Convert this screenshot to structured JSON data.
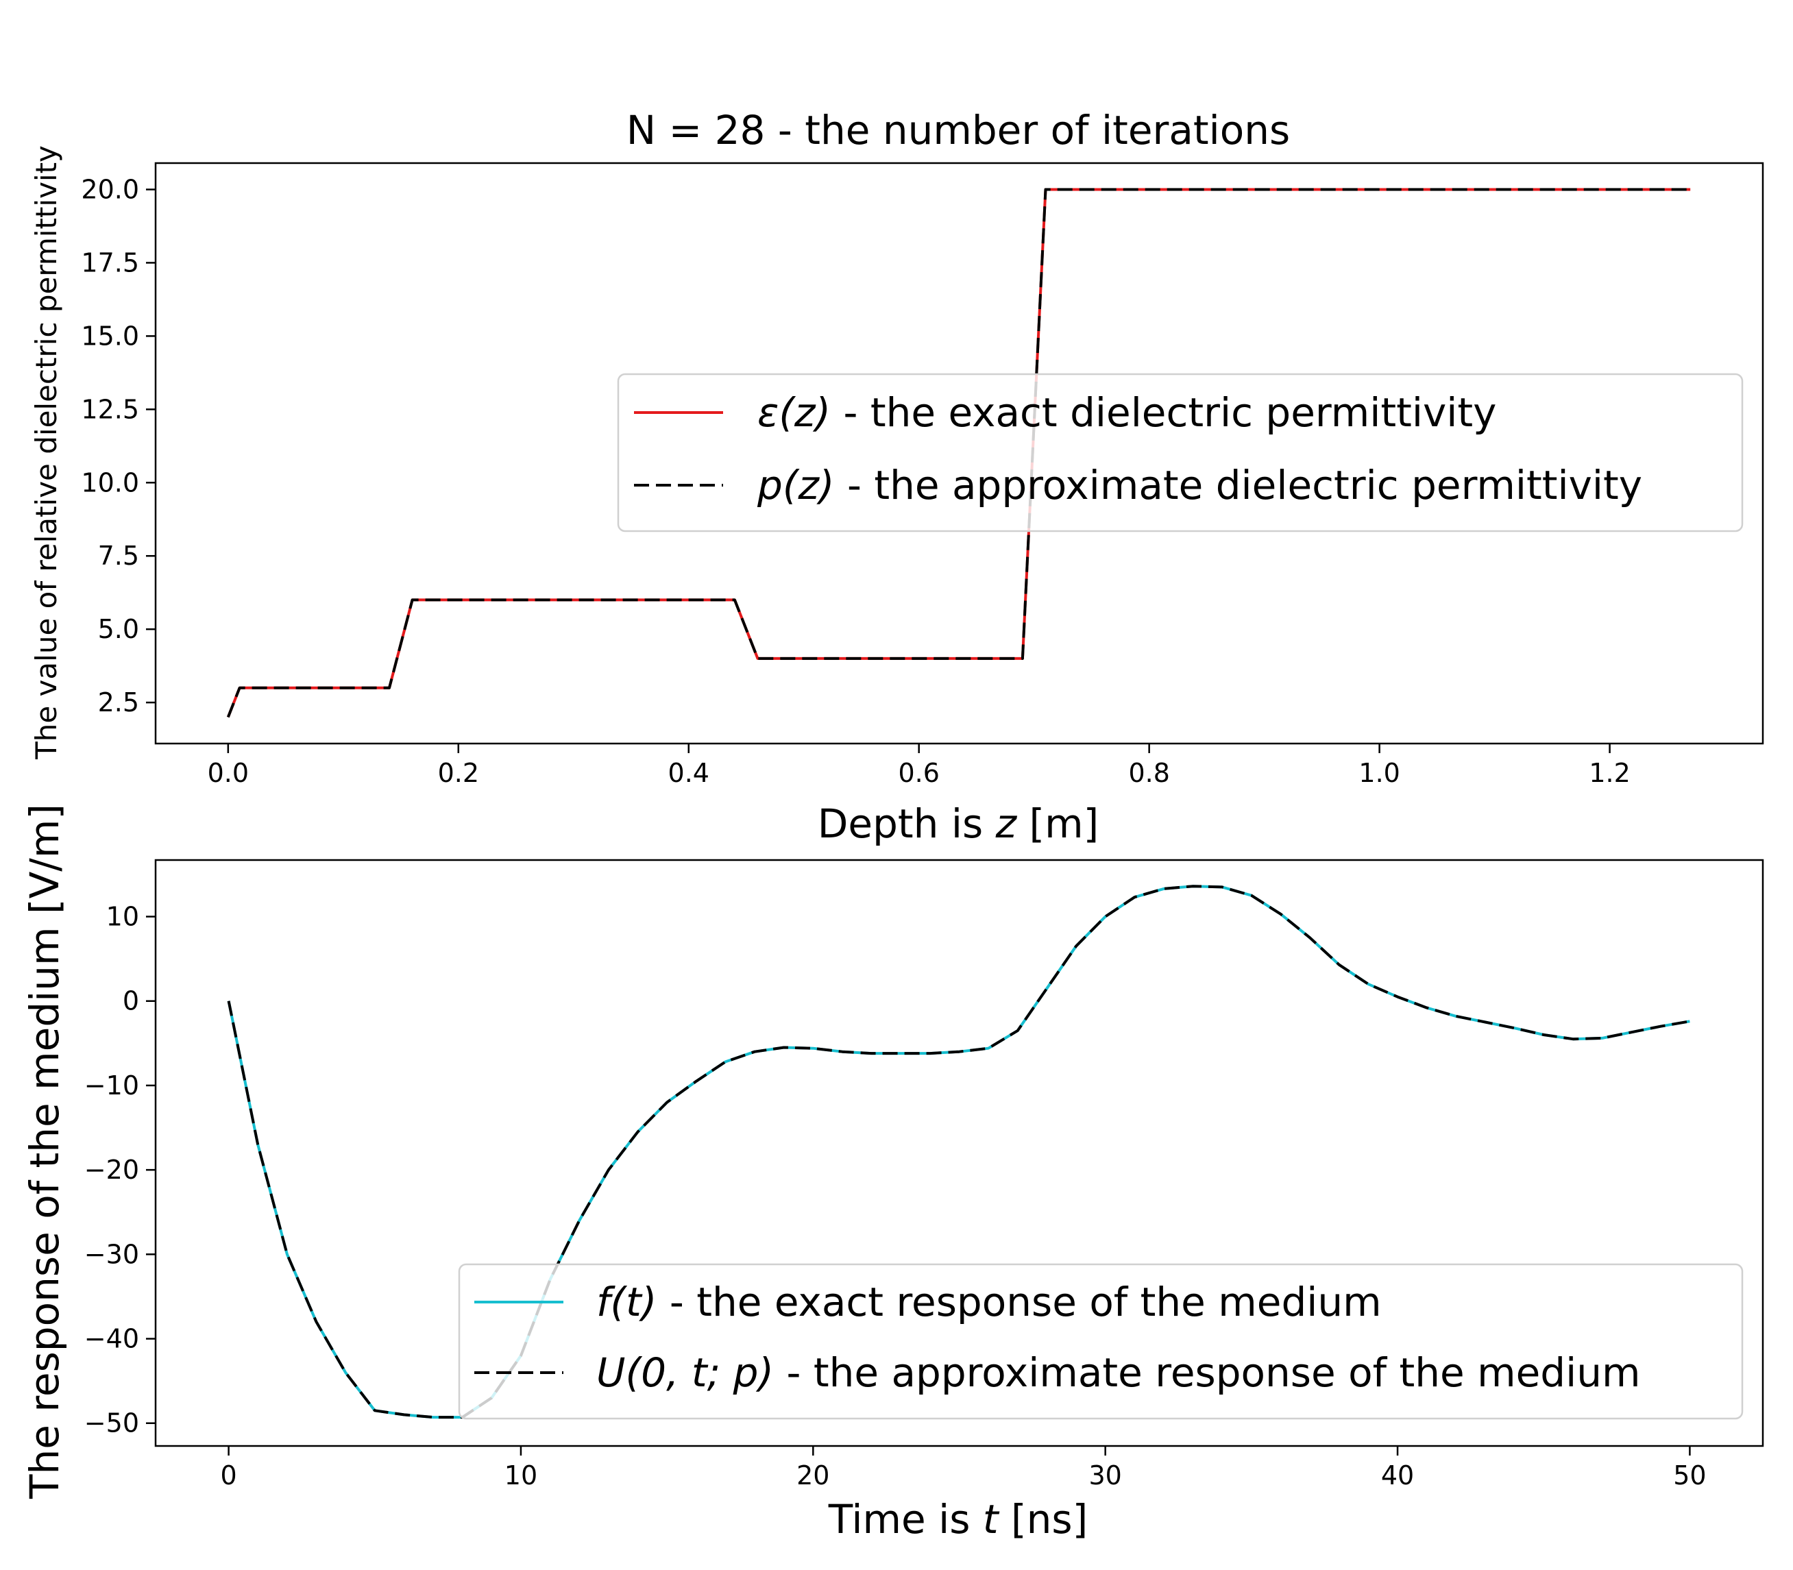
{
  "chart_data": [
    {
      "type": "line",
      "title": "N = 28 - the number of iterations",
      "xlabel_prefix": "Depth is ",
      "xlabel_var": "z",
      "xlabel_suffix": " [m]",
      "ylabel": "The value of relative dielectric permittivity",
      "xlim": [
        -0.063,
        1.333
      ],
      "ylim": [
        1.1,
        20.9
      ],
      "xticks": [
        0.0,
        0.2,
        0.4,
        0.6,
        0.8,
        1.0,
        1.2
      ],
      "xtick_labels": [
        "0.0",
        "0.2",
        "0.4",
        "0.6",
        "0.8",
        "1.0",
        "1.2"
      ],
      "yticks": [
        2.5,
        5.0,
        7.5,
        10.0,
        12.5,
        15.0,
        17.5,
        20.0
      ],
      "ytick_labels": [
        "2.5",
        "5.0",
        "7.5",
        "10.0",
        "12.5",
        "15.0",
        "17.5",
        "20.0"
      ],
      "legend_position": "center-right",
      "series": [
        {
          "name": "exact",
          "legend_sym": "ε(z)",
          "legend_rest": " - the exact dielectric permittivity",
          "color": "#e41a1c",
          "style": "solid",
          "x": [
            0.0,
            0.01,
            0.14,
            0.16,
            0.44,
            0.46,
            0.69,
            0.71,
            1.27
          ],
          "y": [
            2.0,
            3.0,
            3.0,
            6.0,
            6.0,
            4.0,
            4.0,
            20.0,
            20.0
          ]
        },
        {
          "name": "approximate",
          "legend_sym": "p(z)",
          "legend_rest": " - the approximate dielectric permittivity",
          "color": "#000000",
          "style": "dashed",
          "x": [
            0.0,
            0.01,
            0.14,
            0.16,
            0.44,
            0.46,
            0.69,
            0.71,
            1.27
          ],
          "y": [
            2.0,
            3.0,
            3.0,
            6.0,
            6.0,
            4.0,
            4.0,
            20.0,
            20.0
          ]
        }
      ]
    },
    {
      "type": "line",
      "title": "",
      "xlabel_prefix": "Time is ",
      "xlabel_var": "t",
      "xlabel_suffix": " [ns]",
      "ylabel": "The response of the medium [V/m]",
      "xlim": [
        -2.5,
        52.5
      ],
      "ylim": [
        -52.7,
        16.7
      ],
      "xticks": [
        0,
        10,
        20,
        30,
        40,
        50
      ],
      "xtick_labels": [
        "0",
        "10",
        "20",
        "30",
        "40",
        "50"
      ],
      "yticks": [
        -50,
        -40,
        -30,
        -20,
        -10,
        0,
        10
      ],
      "ytick_labels": [
        "−50",
        "−40",
        "−30",
        "−20",
        "−10",
        "0",
        "10"
      ],
      "legend_position": "lower-right",
      "series": [
        {
          "name": "exact",
          "legend_sym": "f(t)",
          "legend_rest": " - the exact response of the medium",
          "color": "#17becf",
          "style": "solid",
          "x": [
            0,
            1,
            2,
            3,
            4,
            5,
            6,
            7,
            8,
            9,
            10,
            11,
            12,
            13,
            14,
            15,
            16,
            17,
            18,
            19,
            20,
            21,
            22,
            23,
            24,
            25,
            26,
            27,
            28,
            29,
            30,
            31,
            32,
            33,
            34,
            35,
            36,
            37,
            38,
            39,
            40,
            41,
            42,
            43,
            44,
            45,
            46,
            47,
            48,
            49,
            50
          ],
          "y": [
            0,
            -17,
            -30,
            -38,
            -44,
            -48.5,
            -49,
            -49.3,
            -49.3,
            -47,
            -42,
            -33,
            -26,
            -20,
            -15.5,
            -12,
            -9.5,
            -7.2,
            -6,
            -5.5,
            -5.6,
            -6,
            -6.2,
            -6.2,
            -6.2,
            -6,
            -5.6,
            -3.5,
            1.5,
            6.5,
            10,
            12.3,
            13.3,
            13.6,
            13.5,
            12.5,
            10.3,
            7.5,
            4.3,
            2,
            0.5,
            -0.8,
            -1.8,
            -2.5,
            -3.2,
            -4,
            -4.5,
            -4.4,
            -3.7,
            -3,
            -2.4
          ]
        },
        {
          "name": "approximate",
          "legend_sym": "U(0, t; p)",
          "legend_rest": " - the approximate response of the medium",
          "color": "#000000",
          "style": "dashed",
          "x": [
            0,
            1,
            2,
            3,
            4,
            5,
            6,
            7,
            8,
            9,
            10,
            11,
            12,
            13,
            14,
            15,
            16,
            17,
            18,
            19,
            20,
            21,
            22,
            23,
            24,
            25,
            26,
            27,
            28,
            29,
            30,
            31,
            32,
            33,
            34,
            35,
            36,
            37,
            38,
            39,
            40,
            41,
            42,
            43,
            44,
            45,
            46,
            47,
            48,
            49,
            50
          ],
          "y": [
            0,
            -17,
            -30,
            -38,
            -44,
            -48.5,
            -49,
            -49.3,
            -49.3,
            -47,
            -42,
            -33,
            -26,
            -20,
            -15.5,
            -12,
            -9.5,
            -7.2,
            -6,
            -5.5,
            -5.6,
            -6,
            -6.2,
            -6.2,
            -6.2,
            -6,
            -5.6,
            -3.5,
            1.5,
            6.5,
            10,
            12.3,
            13.3,
            13.6,
            13.5,
            12.5,
            10.3,
            7.5,
            4.3,
            2,
            0.5,
            -0.8,
            -1.8,
            -2.5,
            -3.2,
            -4,
            -4.5,
            -4.4,
            -3.7,
            -3,
            -2.4
          ]
        }
      ]
    }
  ]
}
